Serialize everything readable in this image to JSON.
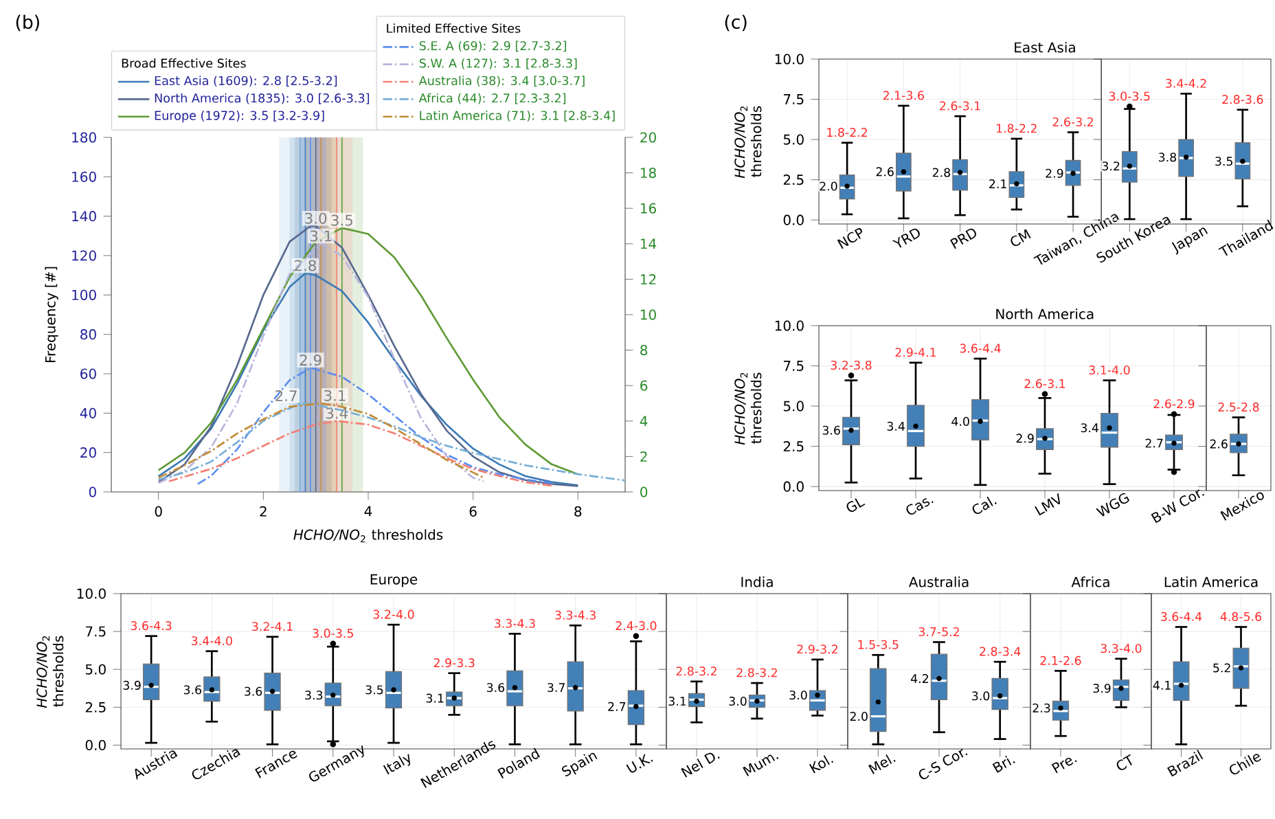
{
  "chart_data": [
    {
      "type": "line",
      "xlabel": "*HCHO/NO*$_{2}$ thresholds",
      "ylabel": "Frequency [#]",
      "legend_title": "Broad Effective Sites",
      "legend": "top",
      "xlim": [
        -0.9,
        8.9
      ],
      "xticks": [
        0,
        2,
        4,
        6,
        8
      ],
      "ylim": [
        0,
        180
      ],
      "yticks": [
        0,
        20,
        40,
        60,
        80,
        100,
        120,
        140,
        160,
        180
      ],
      "y2lim": [
        0,
        20
      ],
      "y2ticks": [
        0,
        2,
        4,
        6,
        8,
        10,
        12,
        14,
        16,
        18,
        20
      ],
      "series": [
        {
          "name": "East Asia (1609): 2.8 [2.5-3.2]",
          "color": "#3c7ab5",
          "line_style": "solid",
          "x": [
            0,
            0.5,
            1,
            1.5,
            2,
            2.5,
            2.8,
            3,
            3.5,
            4,
            4.5,
            5,
            5.5,
            6,
            6.5,
            7,
            7.5,
            8
          ],
          "values": [
            8,
            17,
            32,
            55,
            82,
            104,
            111,
            110,
            102,
            86,
            67,
            49,
            34,
            22,
            14,
            8,
            5,
            3.4
          ]
        },
        {
          "name": "North America (1835): 3.0 [2.6-3.3]",
          "color": "#58698f",
          "line_style": "solid",
          "x": [
            0,
            0.5,
            1,
            1.5,
            2,
            2.5,
            2.9,
            3,
            3.5,
            4,
            4.5,
            5,
            5.5,
            6,
            6.5,
            7,
            7.5,
            8
          ],
          "values": [
            5,
            14,
            33,
            64,
            100,
            127,
            135,
            135,
            124,
            100,
            74,
            50,
            31,
            18,
            10,
            6,
            4,
            3
          ]
        },
        {
          "name": "Europe (1972): 3.5 [3.2-3.9]",
          "color": "#5f9b35",
          "line_style": "solid",
          "x": [
            0,
            0.5,
            1,
            1.5,
            2,
            2.5,
            3,
            3.5,
            4,
            4.5,
            5,
            5.5,
            6,
            6.5,
            7,
            7.5,
            8
          ],
          "values": [
            11,
            20,
            35,
            57,
            83,
            109,
            127,
            134,
            131,
            119,
            100,
            78,
            57,
            38,
            24,
            14,
            9
          ]
        },
        {
          "name": "S.E. A (69): 2.9 [2.7-3.2]",
          "color": "#5b8ef0",
          "line_style": "dashdot",
          "axis": "y2",
          "x": [
            0.75,
            1,
            1.5,
            2,
            2.5,
            2.9,
            3.5,
            4,
            4.5,
            5,
            5.5,
            6,
            6.5,
            7,
            7.5
          ],
          "values": [
            0.45,
            0.9,
            2.4,
            4.5,
            6.3,
            7.0,
            6.5,
            5.5,
            4.3,
            3.1,
            2.1,
            1.4,
            1.0,
            0.7,
            0.5
          ]
        },
        {
          "name": "S.W. A (127): 3.1 [2.8-3.3]",
          "color": "#b9b6dc",
          "line_style": "dashdot",
          "axis": "y2",
          "x": [
            0,
            0.5,
            1,
            1.5,
            2,
            2.5,
            3.1,
            3.5,
            4,
            4.5,
            5,
            5.5,
            6,
            6.2
          ],
          "values": [
            0.5,
            1.2,
            2.5,
            5,
            8.8,
            12.3,
            14,
            13.3,
            11,
            7.5,
            4.2,
            2.0,
            0.8,
            0.6
          ]
        },
        {
          "name": "Australia (38): 3.4 [3.0-3.7]",
          "color": "#f47f72",
          "line_style": "dashdot",
          "axis": "y2",
          "x": [
            0.2,
            1,
            1.5,
            2,
            2.5,
            3,
            3.4,
            4,
            4.5,
            5,
            5.5,
            6,
            6.5,
            7,
            7.5
          ],
          "values": [
            0.6,
            1.3,
            1.9,
            2.6,
            3.3,
            3.8,
            4.0,
            3.8,
            3.3,
            2.6,
            1.9,
            1.3,
            0.9,
            0.55,
            0.35
          ]
        },
        {
          "name": "Africa (44): 2.7 [2.3-3.2]",
          "color": "#76aed6",
          "line_style": "dashdot",
          "axis": "y2",
          "x": [
            0,
            0.5,
            1,
            1.5,
            2,
            2.7,
            3,
            3.5,
            4,
            4.5,
            5,
            5.5,
            6,
            7,
            8,
            8.9
          ],
          "values": [
            0.7,
            1.1,
            1.7,
            2.8,
            4.0,
            5.0,
            4.9,
            4.6,
            4.2,
            3.7,
            3.1,
            2.6,
            2.2,
            1.5,
            1.0,
            0.65
          ]
        },
        {
          "name": "Latin America (71): 3.1 [2.8-3.4]",
          "color": "#c38a35",
          "line_style": "dashdot",
          "axis": "y2",
          "x": [
            0,
            0.5,
            1,
            1.5,
            2,
            2.5,
            3.1,
            3.5,
            4,
            4.5,
            5,
            5.5,
            6,
            6.2
          ],
          "values": [
            0.8,
            1.5,
            2.3,
            3.3,
            4.1,
            4.8,
            5.0,
            4.8,
            4.4,
            3.6,
            2.7,
            1.8,
            1.1,
            0.8
          ]
        }
      ],
      "bands": [
        {
          "axis": "x",
          "from": 2.5,
          "to": 3.2,
          "color": "#3c7ab5"
        },
        {
          "axis": "x",
          "from": 2.6,
          "to": 3.3,
          "color": "#58698f"
        },
        {
          "axis": "x",
          "from": 3.2,
          "to": 3.9,
          "color": "#5f9b35"
        },
        {
          "axis": "x",
          "from": 2.7,
          "to": 3.2,
          "color": "#5b8ef0"
        },
        {
          "axis": "x",
          "from": 2.8,
          "to": 3.3,
          "color": "#b9b6dc"
        },
        {
          "axis": "x",
          "from": 3.0,
          "to": 3.7,
          "color": "#f47f72"
        },
        {
          "axis": "x",
          "from": 2.3,
          "to": 3.2,
          "color": "#76aed6"
        },
        {
          "axis": "x",
          "from": 2.8,
          "to": 3.4,
          "color": "#c38a35"
        }
      ],
      "ref_lines": [
        {
          "axis": "x",
          "value": 2.8,
          "color": "#3c7ab5"
        },
        {
          "axis": "x",
          "value": 3.0,
          "color": "#58698f"
        },
        {
          "axis": "x",
          "value": 3.5,
          "color": "#5f9b35"
        },
        {
          "axis": "x",
          "value": 2.9,
          "color": "#5b8ef0"
        },
        {
          "axis": "x",
          "value": 3.1,
          "color": "#b9b6dc"
        },
        {
          "axis": "x",
          "value": 3.4,
          "color": "#f47f72"
        },
        {
          "axis": "x",
          "value": 2.7,
          "color": "#76aed6"
        },
        {
          "axis": "x",
          "value": 3.1,
          "color": "#c38a35"
        }
      ],
      "annotations": [
        "(b)",
        "Limited Effective Sites",
        {
          "text": "2.8",
          "x": 2.8,
          "y": 111
        },
        {
          "text": "3.0",
          "x": 3.0,
          "y": 135
        },
        {
          "text": "3.5",
          "x": 3.5,
          "y": 134
        },
        {
          "text": "2.9",
          "x": 2.9,
          "y": 63
        },
        {
          "text": "3.1",
          "x": 3.1,
          "y": 126
        },
        {
          "text": "3.4",
          "x": 3.4,
          "y": 36
        },
        {
          "text": "2.7",
          "x": 2.7,
          "y": 45
        },
        {
          "text": "3.1",
          "x": 3.1,
          "y": 45
        }
      ]
    },
    {
      "type": "box",
      "title": "East Asia",
      "ylabel": "*HCHO/NO*$_{2}$ thresholds",
      "color": "#4380b8",
      "grid": true,
      "ylim": [
        -0.25,
        10
      ],
      "yticks": [
        {
          "value": 0,
          "label": "0.0"
        },
        2.5,
        {
          "value": 5,
          "label": "5.0"
        },
        7.5,
        {
          "value": 10,
          "label": "10.0"
        }
      ],
      "categories": [
        "NCP",
        "YRD",
        "PRD",
        "CM",
        "Taiwan, China"
      ],
      "boxes": [
        {
          "low": 0.35,
          "q1": 1.3,
          "median": 2.0,
          "q3": 2.8,
          "high": 4.8,
          "mean": 2.1
        },
        {
          "low": 0.1,
          "q1": 1.8,
          "median": 2.7,
          "q3": 4.15,
          "high": 7.1,
          "mean": 3.0
        },
        {
          "low": 0.3,
          "q1": 1.85,
          "median": 2.85,
          "q3": 3.75,
          "high": 6.45,
          "mean": 2.95
        },
        {
          "low": 0.65,
          "q1": 1.4,
          "median": 2.15,
          "q3": 3.0,
          "high": 5.05,
          "mean": 2.25
        },
        {
          "low": 0.2,
          "q1": 2.15,
          "median": 2.95,
          "q3": 3.7,
          "high": 5.45,
          "mean": 2.9
        }
      ],
      "annotations": [
        "(c)",
        {
          "text": "2.0",
          "x": "NCP",
          "y": 2.1
        },
        {
          "text": "1.8-2.2",
          "x": "NCP",
          "y": 4.8
        },
        {
          "text": "2.6",
          "x": "YRD",
          "y": 3.0
        },
        {
          "text": "2.1-3.6",
          "x": "YRD",
          "y": 7.1
        },
        {
          "text": "2.8",
          "x": "PRD",
          "y": 2.95
        },
        {
          "text": "2.6-3.1",
          "x": "PRD",
          "y": 6.45
        },
        {
          "text": "2.1",
          "x": "CM",
          "y": 2.25
        },
        {
          "text": "1.8-2.2",
          "x": "CM",
          "y": 5.05
        },
        {
          "text": "2.9",
          "x": "Taiwan, China",
          "y": 2.9
        },
        {
          "text": "2.6-3.2",
          "x": "Taiwan, China",
          "y": 5.45
        }
      ]
    },
    {
      "type": "box",
      "color": "#4380b8",
      "grid": true,
      "tick_labels": "x",
      "ylim": [
        -0.25,
        10
      ],
      "yticks": [
        {
          "value": 0,
          "label": null
        },
        {
          "value": 2.5,
          "label": null
        },
        {
          "value": 5,
          "label": null
        },
        {
          "value": 7.5,
          "label": null
        },
        {
          "value": 10,
          "label": null
        }
      ],
      "categories": [
        "South Korea",
        "Japan",
        "Thailand"
      ],
      "boxes": [
        {
          "low": 0.05,
          "q1": 2.35,
          "median": 3.2,
          "q3": 4.25,
          "high": 6.9,
          "mean": 3.35,
          "outliers": [
            7.05
          ]
        },
        {
          "low": 0.05,
          "q1": 2.7,
          "median": 3.85,
          "q3": 5.0,
          "high": 7.85,
          "mean": 3.9
        },
        {
          "low": 0.85,
          "q1": 2.55,
          "median": 3.5,
          "q3": 4.8,
          "high": 6.85,
          "mean": 3.65
        }
      ],
      "annotations": [
        {
          "text": "3.2",
          "x": "South Korea",
          "y": 3.35
        },
        {
          "text": "3.0-3.5",
          "x": "South Korea",
          "y": 7.05
        },
        {
          "text": "3.8",
          "x": "Japan",
          "y": 3.9
        },
        {
          "text": "3.4-4.2",
          "x": "Japan",
          "y": 7.85
        },
        {
          "text": "3.5",
          "x": "Thailand",
          "y": 3.65
        },
        {
          "text": "2.8-3.6",
          "x": "Thailand",
          "y": 6.85
        }
      ]
    },
    {
      "type": "box",
      "title": "North America",
      "ylabel": "*HCHO/NO*$_{2}$ thresholds",
      "color": "#4380b8",
      "grid": true,
      "ylim": [
        -0.25,
        10
      ],
      "yticks": [
        {
          "value": 0,
          "label": "0.0"
        },
        2.5,
        {
          "value": 5,
          "label": "5.0"
        },
        7.5,
        {
          "value": 10,
          "label": "10.0"
        }
      ],
      "categories": [
        "GL",
        "Cas.",
        "Cal.",
        "LMV",
        "WGG",
        "B-W Cor."
      ],
      "boxes": [
        {
          "low": 0.25,
          "q1": 2.6,
          "median": 3.6,
          "q3": 4.3,
          "high": 6.6,
          "mean": 3.5,
          "outliers": [
            6.9
          ]
        },
        {
          "low": 0.5,
          "q1": 2.5,
          "median": 3.45,
          "q3": 5.05,
          "high": 7.7,
          "mean": 3.75
        },
        {
          "low": 0.1,
          "q1": 2.9,
          "median": 4.1,
          "q3": 5.4,
          "high": 7.95,
          "mean": 4.05
        },
        {
          "low": 0.8,
          "q1": 2.3,
          "median": 2.95,
          "q3": 3.6,
          "high": 5.5,
          "mean": 3.0,
          "outliers": [
            5.75
          ]
        },
        {
          "low": 0.15,
          "q1": 2.45,
          "median": 3.35,
          "q3": 4.55,
          "high": 6.6,
          "mean": 3.65
        },
        {
          "low": 1.05,
          "q1": 2.3,
          "median": 2.75,
          "q3": 3.2,
          "high": 4.45,
          "mean": 2.7,
          "outliers": [
            0.9,
            4.5
          ]
        }
      ],
      "annotations": [
        {
          "text": "3.6",
          "x": "GL",
          "y": 3.5
        },
        {
          "text": "3.2-3.8",
          "x": "GL",
          "y": 6.9
        },
        {
          "text": "3.4",
          "x": "Cas.",
          "y": 3.75
        },
        {
          "text": "2.9-4.1",
          "x": "Cas.",
          "y": 7.7
        },
        {
          "text": "4.0",
          "x": "Cal.",
          "y": 4.05
        },
        {
          "text": "3.6-4.4",
          "x": "Cal.",
          "y": 7.95
        },
        {
          "text": "2.9",
          "x": "LMV",
          "y": 3.0
        },
        {
          "text": "2.6-3.1",
          "x": "LMV",
          "y": 5.75
        },
        {
          "text": "3.4",
          "x": "WGG",
          "y": 3.65
        },
        {
          "text": "3.1-4.0",
          "x": "WGG",
          "y": 6.6
        },
        {
          "text": "2.7",
          "x": "B-W Cor.",
          "y": 2.7
        },
        {
          "text": "2.6-2.9",
          "x": "B-W Cor.",
          "y": 4.5
        }
      ]
    },
    {
      "type": "box",
      "color": "#4380b8",
      "grid": true,
      "tick_labels": "x",
      "ylim": [
        -0.25,
        10
      ],
      "yticks": [
        {
          "value": 0,
          "label": null
        },
        {
          "value": 2.5,
          "label": null
        },
        {
          "value": 5,
          "label": null
        },
        {
          "value": 7.5,
          "label": null
        },
        {
          "value": 10,
          "label": null
        }
      ],
      "categories": [
        "Mexico"
      ],
      "boxes": [
        {
          "low": 0.7,
          "q1": 2.1,
          "median": 2.65,
          "q3": 3.25,
          "high": 4.3,
          "mean": 2.65
        }
      ],
      "annotations": [
        {
          "text": "2.6",
          "x": "Mexico",
          "y": 2.65
        },
        {
          "text": "2.5-2.8",
          "x": "Mexico",
          "y": 4.3
        }
      ]
    },
    {
      "type": "box",
      "title": "Europe",
      "ylabel": "*HCHO/NO*$_{2}$ thresholds",
      "color": "#4380b8",
      "grid": true,
      "ylim": [
        -0.25,
        10
      ],
      "yticks": [
        {
          "value": 0,
          "label": "0.0"
        },
        2.5,
        {
          "value": 5,
          "label": "5.0"
        },
        7.5,
        {
          "value": 10,
          "label": "10.0"
        }
      ],
      "categories": [
        "Austria",
        "Czechia",
        "France",
        "Germany",
        "Italy",
        "Netherlands",
        "Poland",
        "Spain",
        "U.K."
      ],
      "boxes": [
        {
          "low": 0.15,
          "q1": 3.0,
          "median": 3.85,
          "q3": 5.35,
          "high": 7.2,
          "mean": 3.95
        },
        {
          "low": 1.55,
          "q1": 2.9,
          "median": 3.5,
          "q3": 4.5,
          "high": 6.2,
          "mean": 3.65
        },
        {
          "low": 0.05,
          "q1": 2.3,
          "median": 3.45,
          "q3": 4.75,
          "high": 7.15,
          "mean": 3.55
        },
        {
          "low": 0.25,
          "q1": 2.6,
          "median": 3.2,
          "q3": 4.1,
          "high": 6.5,
          "mean": 3.3,
          "outliers": [
            0.05,
            6.7
          ]
        },
        {
          "low": 0.15,
          "q1": 2.45,
          "median": 3.45,
          "q3": 4.85,
          "high": 7.95,
          "mean": 3.65
        },
        {
          "low": 2.0,
          "q1": 2.6,
          "median": 3.1,
          "q3": 3.5,
          "high": 4.75,
          "mean": 3.1
        },
        {
          "low": 0.05,
          "q1": 2.6,
          "median": 3.55,
          "q3": 4.9,
          "high": 7.35,
          "mean": 3.8
        },
        {
          "low": 0.05,
          "q1": 2.25,
          "median": 3.75,
          "q3": 5.5,
          "high": 7.9,
          "mean": 3.8
        },
        {
          "low": 0.05,
          "q1": 1.35,
          "median": 2.6,
          "q3": 3.6,
          "high": 6.85,
          "mean": 2.55,
          "outliers": [
            7.2
          ]
        }
      ],
      "annotations": [
        {
          "text": "3.9",
          "x": "Austria",
          "y": 3.95
        },
        {
          "text": "3.6-4.3",
          "x": "Austria",
          "y": 7.2
        },
        {
          "text": "3.6",
          "x": "Czechia",
          "y": 3.65
        },
        {
          "text": "3.4-4.0",
          "x": "Czechia",
          "y": 6.2
        },
        {
          "text": "3.6",
          "x": "France",
          "y": 3.55
        },
        {
          "text": "3.2-4.1",
          "x": "France",
          "y": 7.15
        },
        {
          "text": "3.3",
          "x": "Germany",
          "y": 3.3
        },
        {
          "text": "3.0-3.5",
          "x": "Germany",
          "y": 6.7
        },
        {
          "text": "3.5",
          "x": "Italy",
          "y": 3.65
        },
        {
          "text": "3.2-4.0",
          "x": "Italy",
          "y": 7.95
        },
        {
          "text": "3.1",
          "x": "Netherlands",
          "y": 3.1
        },
        {
          "text": "2.9-3.3",
          "x": "Netherlands",
          "y": 4.75
        },
        {
          "text": "3.6",
          "x": "Poland",
          "y": 3.8
        },
        {
          "text": "3.3-4.3",
          "x": "Poland",
          "y": 7.35
        },
        {
          "text": "3.7",
          "x": "Spain",
          "y": 3.8
        },
        {
          "text": "3.3-4.3",
          "x": "Spain",
          "y": 7.9
        },
        {
          "text": "2.7",
          "x": "U.K.",
          "y": 2.55
        },
        {
          "text": "2.4-3.0",
          "x": "U.K.",
          "y": 7.2
        }
      ]
    },
    {
      "type": "box",
      "title": "India",
      "color": "#4380b8",
      "grid": true,
      "tick_labels": "x",
      "ylim": [
        -0.25,
        10
      ],
      "yticks": [
        {
          "value": 0,
          "label": null
        },
        {
          "value": 2.5,
          "label": null
        },
        {
          "value": 5,
          "label": null
        },
        {
          "value": 7.5,
          "label": null
        },
        {
          "value": 10,
          "label": null
        }
      ],
      "categories": [
        "Nel D.",
        "Mum.",
        "Kol."
      ],
      "boxes": [
        {
          "low": 1.5,
          "q1": 2.55,
          "median": 3.0,
          "q3": 3.4,
          "high": 4.2,
          "mean": 2.9
        },
        {
          "low": 1.75,
          "q1": 2.5,
          "median": 2.95,
          "q3": 3.3,
          "high": 4.1,
          "mean": 2.9
        },
        {
          "low": 1.95,
          "q1": 2.3,
          "median": 2.95,
          "q3": 3.6,
          "high": 5.65,
          "mean": 3.3
        }
      ],
      "annotations": [
        {
          "text": "3.1",
          "x": "Nel D.",
          "y": 2.9
        },
        {
          "text": "2.8-3.2",
          "x": "Nel D.",
          "y": 4.2
        },
        {
          "text": "3.0",
          "x": "Mum.",
          "y": 2.9
        },
        {
          "text": "2.8-3.2",
          "x": "Mum.",
          "y": 4.1
        },
        {
          "text": "3.0",
          "x": "Kol.",
          "y": 3.3
        },
        {
          "text": "2.9-3.2",
          "x": "Kol.",
          "y": 5.65
        }
      ]
    },
    {
      "type": "box",
      "title": "Australia",
      "color": "#4380b8",
      "grid": true,
      "tick_labels": "x",
      "ylim": [
        -0.25,
        10
      ],
      "yticks": [
        {
          "value": 0,
          "label": null
        },
        {
          "value": 2.5,
          "label": null
        },
        {
          "value": 5,
          "label": null
        },
        {
          "value": 7.5,
          "label": null
        },
        {
          "value": 10,
          "label": null
        }
      ],
      "categories": [
        "Mel.",
        "C-S Cor.",
        "Bri."
      ],
      "boxes": [
        {
          "low": 0.05,
          "q1": 0.9,
          "median": 1.9,
          "q3": 5.05,
          "high": 5.95,
          "mean": 2.85
        },
        {
          "low": 0.85,
          "q1": 3.0,
          "median": 4.25,
          "q3": 6.0,
          "high": 6.8,
          "mean": 4.4
        },
        {
          "low": 0.4,
          "q1": 2.35,
          "median": 3.1,
          "q3": 4.4,
          "high": 5.5,
          "mean": 3.25
        }
      ],
      "annotations": [
        {
          "text": "2.0",
          "x": "Mel.",
          "y": 1.9
        },
        {
          "text": "1.5-3.5",
          "x": "Mel.",
          "y": 5.95
        },
        {
          "text": "4.2",
          "x": "C-S Cor.",
          "y": 4.4
        },
        {
          "text": "3.7-5.2",
          "x": "C-S Cor.",
          "y": 6.8
        },
        {
          "text": "3.0",
          "x": "Bri.",
          "y": 3.25
        },
        {
          "text": "2.8-3.4",
          "x": "Bri.",
          "y": 5.5
        }
      ]
    },
    {
      "type": "box",
      "title": "Africa",
      "color": "#4380b8",
      "grid": true,
      "tick_labels": "x",
      "ylim": [
        -0.25,
        10
      ],
      "yticks": [
        {
          "value": 0,
          "label": null
        },
        {
          "value": 2.5,
          "label": null
        },
        {
          "value": 5,
          "label": null
        },
        {
          "value": 7.5,
          "label": null
        },
        {
          "value": 10,
          "label": null
        }
      ],
      "categories": [
        "Pre.",
        "CT"
      ],
      "boxes": [
        {
          "low": 0.6,
          "q1": 1.65,
          "median": 2.25,
          "q3": 2.9,
          "high": 4.9,
          "mean": 2.45
        },
        {
          "low": 2.5,
          "q1": 2.95,
          "median": 3.85,
          "q3": 4.3,
          "high": 5.7,
          "mean": 3.75
        }
      ],
      "annotations": [
        {
          "text": "2.3",
          "x": "Pre.",
          "y": 2.45
        },
        {
          "text": "2.1-2.6",
          "x": "Pre.",
          "y": 4.9
        },
        {
          "text": "3.9",
          "x": "CT",
          "y": 3.75
        },
        {
          "text": "3.3-4.0",
          "x": "CT",
          "y": 5.7
        }
      ]
    },
    {
      "type": "box",
      "title": "Latin America",
      "color": "#4380b8",
      "grid": true,
      "tick_labels": "x",
      "ylim": [
        -0.25,
        10
      ],
      "yticks": [
        {
          "value": 0,
          "label": null
        },
        {
          "value": 2.5,
          "label": null
        },
        {
          "value": 5,
          "label": null
        },
        {
          "value": 7.5,
          "label": null
        },
        {
          "value": 10,
          "label": null
        }
      ],
      "categories": [
        "Brazil",
        "Chile"
      ],
      "boxes": [
        {
          "low": 0.05,
          "q1": 2.95,
          "median": 4.05,
          "q3": 5.5,
          "high": 7.8,
          "mean": 3.95
        },
        {
          "low": 2.6,
          "q1": 3.75,
          "median": 5.2,
          "q3": 6.4,
          "high": 7.8,
          "mean": 5.1
        }
      ],
      "annotations": [
        {
          "text": "4.1",
          "x": "Brazil",
          "y": 3.95
        },
        {
          "text": "3.6-4.4",
          "x": "Brazil",
          "y": 7.8
        },
        {
          "text": "5.2",
          "x": "Chile",
          "y": 5.1
        },
        {
          "text": "4.8-5.6",
          "x": "Chile",
          "y": 7.8
        }
      ]
    }
  ]
}
